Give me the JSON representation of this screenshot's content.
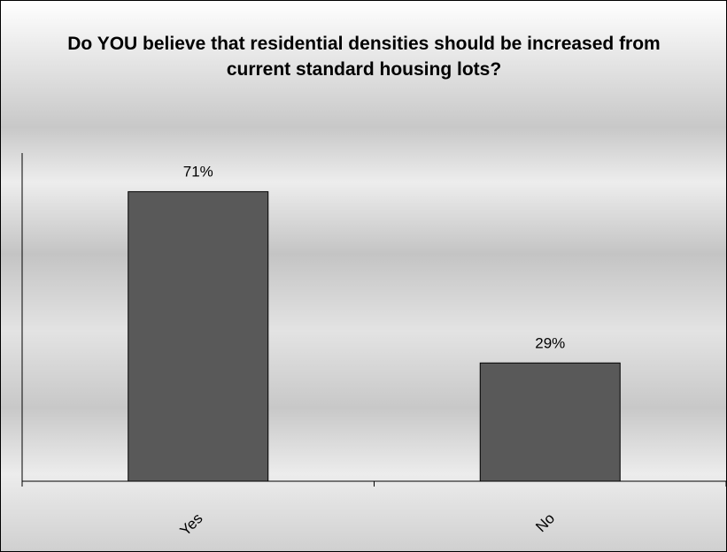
{
  "chart_data": {
    "type": "bar",
    "title": "Do YOU believe that residential densities should be increased from current standard housing lots?",
    "categories": [
      "Yes",
      "No"
    ],
    "values": [
      71,
      29
    ],
    "value_labels": [
      "71%",
      "29%"
    ],
    "unit": "%",
    "ylim": [
      0,
      100
    ],
    "grid": false,
    "legend": "none",
    "bar_color": "#595959"
  }
}
